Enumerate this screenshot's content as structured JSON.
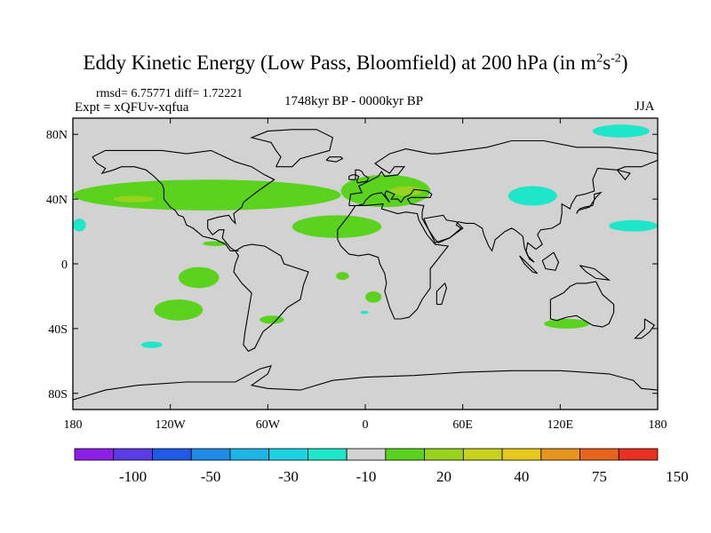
{
  "chart_data": {
    "type": "heatmap",
    "title_main": "Eddy Kinetic Energy (Low Pass, Bloomfield) at 200 hPa (in m",
    "title_sup1": "2",
    "title_mid": "s",
    "title_sup2": "-2",
    "title_end": ")",
    "stats": "rmsd= 6.75771 diff= 1.72221",
    "experiment": "Expt = xQFUv-xqfua",
    "period": "1748kyr BP - 0000kyr BP",
    "season": "JJA",
    "x_range": [
      -180,
      180
    ],
    "y_range": [
      -90,
      90
    ],
    "x_ticks": [
      {
        "value": -180,
        "label": "180"
      },
      {
        "value": -120,
        "label": "120W"
      },
      {
        "value": -60,
        "label": "60W"
      },
      {
        "value": 0,
        "label": "0"
      },
      {
        "value": 60,
        "label": "60E"
      },
      {
        "value": 120,
        "label": "120E"
      },
      {
        "value": 180,
        "label": "180"
      }
    ],
    "y_ticks": [
      {
        "value": 80,
        "label": "80N"
      },
      {
        "value": 40,
        "label": "40N"
      },
      {
        "value": 0,
        "label": "0"
      },
      {
        "value": -40,
        "label": "40S"
      },
      {
        "value": -80,
        "label": "80S"
      }
    ],
    "colorbar": {
      "colors": [
        "#8c1ee6",
        "#5a3ce6",
        "#1e5ae6",
        "#1e8ce6",
        "#1eb4e6",
        "#1ed2e6",
        "#1ee6c8",
        "#d2d2d2",
        "#5ad21e",
        "#96d21e",
        "#c8d21e",
        "#e6c81e",
        "#e6961e",
        "#e6641e",
        "#e6321e"
      ],
      "labels": [
        {
          "after_box": 2,
          "label": "-100"
        },
        {
          "after_box": 4,
          "label": "-50"
        },
        {
          "after_box": 6,
          "label": "-30"
        },
        {
          "after_box": 8,
          "label": "-10"
        },
        {
          "after_box": 10,
          "label": "20"
        },
        {
          "after_box": 12,
          "label": "40"
        },
        {
          "after_box": 14,
          "label": "75"
        },
        {
          "after_box": 16,
          "label": "150"
        }
      ]
    },
    "anomaly_regions": [
      {
        "level": "-10",
        "lon": [
          140,
          175
        ],
        "lat": [
          78,
          86
        ]
      },
      {
        "level": "-10",
        "lon": [
          88,
          118
        ],
        "lat": [
          36,
          48
        ]
      },
      {
        "level": "-10",
        "lon": [
          150,
          180
        ],
        "lat": [
          20,
          27
        ]
      },
      {
        "level": "-10",
        "lon": [
          -180,
          -172
        ],
        "lat": [
          20,
          28
        ]
      },
      {
        "level": "-10",
        "lon": [
          -138,
          -125
        ],
        "lat": [
          -52,
          -48
        ]
      },
      {
        "level": "-10",
        "lon": [
          -3,
          2
        ],
        "lat": [
          -31,
          -29
        ]
      },
      {
        "level": "20",
        "lon": [
          -180,
          -15
        ],
        "lat": [
          33,
          52
        ]
      },
      {
        "level": "20",
        "lon": [
          -15,
          40
        ],
        "lat": [
          35,
          55
        ]
      },
      {
        "level": "20",
        "lon": [
          -45,
          10
        ],
        "lat": [
          16,
          30
        ]
      },
      {
        "level": "20",
        "lon": [
          -115,
          -90
        ],
        "lat": [
          -15,
          -2
        ]
      },
      {
        "level": "20",
        "lon": [
          -130,
          -100
        ],
        "lat": [
          -35,
          -22
        ]
      },
      {
        "level": "20",
        "lon": [
          -65,
          -50
        ],
        "lat": [
          -37,
          -32
        ]
      },
      {
        "level": "20",
        "lon": [
          110,
          138
        ],
        "lat": [
          -40,
          -34
        ]
      },
      {
        "level": "20",
        "lon": [
          0,
          10
        ],
        "lat": [
          -24,
          -17
        ]
      },
      {
        "level": "20",
        "lon": [
          -18,
          -10
        ],
        "lat": [
          -10,
          -5
        ]
      },
      {
        "level": "20",
        "lon": [
          -100,
          -85
        ],
        "lat": [
          11,
          14
        ]
      },
      {
        "level": "40",
        "lon": [
          -155,
          -130
        ],
        "lat": [
          38,
          42
        ]
      },
      {
        "level": "40",
        "lon": [
          15,
          35
        ],
        "lat": [
          42,
          48
        ]
      }
    ]
  }
}
